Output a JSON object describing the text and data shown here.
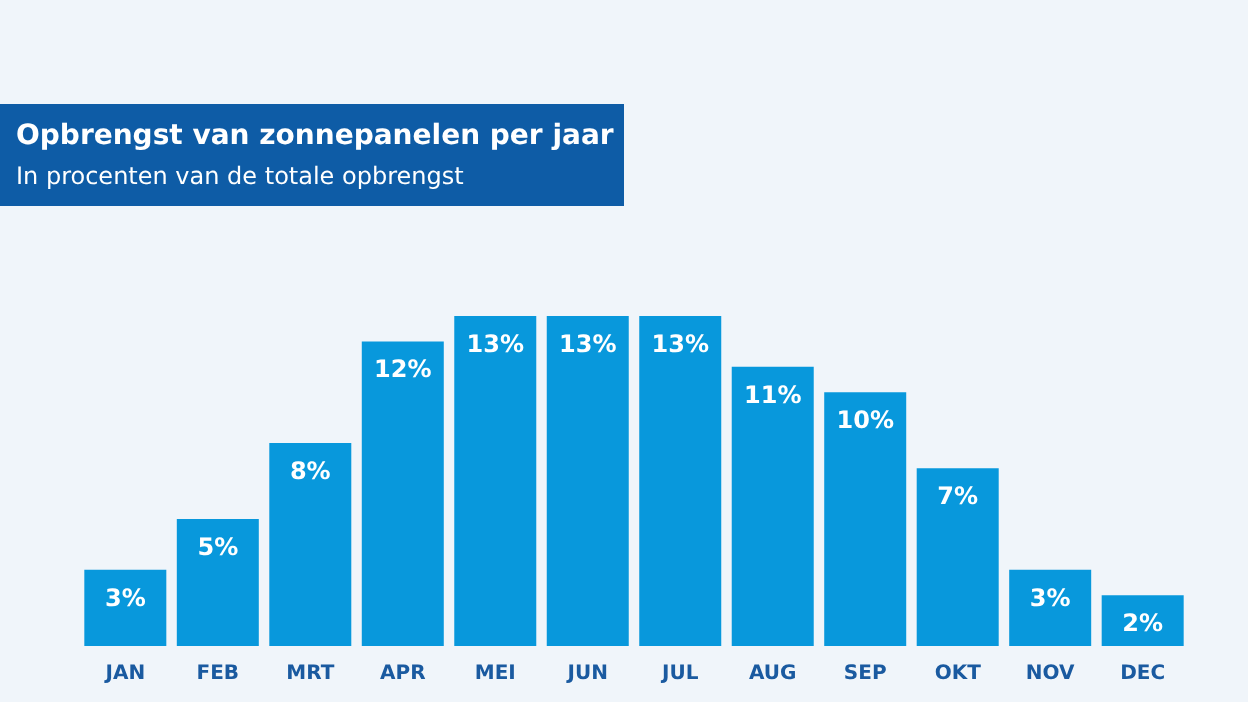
{
  "chart_data": {
    "type": "bar",
    "title": "Opbrengst van zonnepanelen per jaar",
    "subtitle": "In procenten van de totale opbrengst",
    "categories": [
      "JAN",
      "FEB",
      "MRT",
      "APR",
      "MEI",
      "JUN",
      "JUL",
      "AUG",
      "SEP",
      "OKT",
      "NOV",
      "DEC"
    ],
    "values": [
      3,
      5,
      8,
      12,
      13,
      13,
      13,
      11,
      10,
      7,
      3,
      2
    ],
    "value_labels": [
      "3%",
      "5%",
      "8%",
      "12%",
      "13%",
      "13%",
      "13%",
      "11%",
      "10%",
      "7%",
      "3%",
      "2%"
    ],
    "color": "#0898dc",
    "grid": false
  }
}
